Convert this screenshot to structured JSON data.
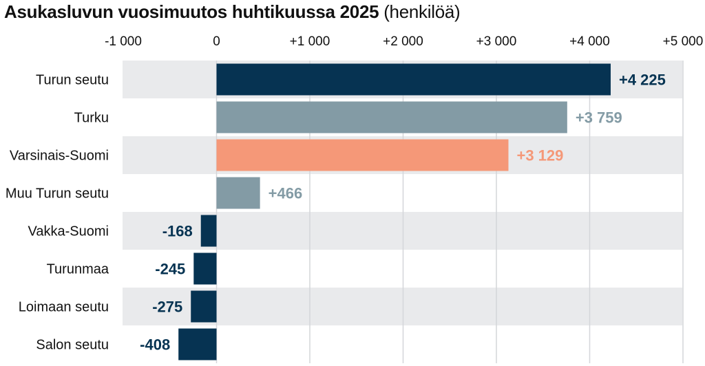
{
  "title": "Asukasluvun vuosimuutos huhtikuussa 2025",
  "title_unit": "(henkilöä)",
  "colors": {
    "dark": "#063352",
    "gray": "#839ba5",
    "orange": "#f59878",
    "band": "#e9eaec",
    "grid": "#d4d6d9"
  },
  "chart_data": {
    "type": "bar",
    "orientation": "horizontal",
    "title": "Asukasluvun vuosimuutos huhtikuussa 2025 (henkilöä)",
    "xlim": [
      -1000,
      5000
    ],
    "xticks": [
      -1000,
      0,
      1000,
      2000,
      3000,
      4000,
      5000
    ],
    "xtick_labels": [
      "-1 000",
      "0",
      "+1 000",
      "+2 000",
      "+3 000",
      "+4 000",
      "+5 000"
    ],
    "grid": true,
    "categories": [
      "Turun seutu",
      "Turku",
      "Varsinais-Suomi",
      "Muu Turun seutu",
      "Vakka-Suomi",
      "Turunmaa",
      "Loimaan seutu",
      "Salon seutu"
    ],
    "values": [
      4225,
      3759,
      3129,
      466,
      -168,
      -245,
      -275,
      -408
    ],
    "value_labels": [
      "+4 225",
      "+3 759",
      "+3 129",
      "+466",
      "-168",
      "-245",
      "-275",
      "-408"
    ],
    "bar_colors": [
      "#063352",
      "#839ba5",
      "#f59878",
      "#839ba5",
      "#063352",
      "#063352",
      "#063352",
      "#063352"
    ]
  }
}
